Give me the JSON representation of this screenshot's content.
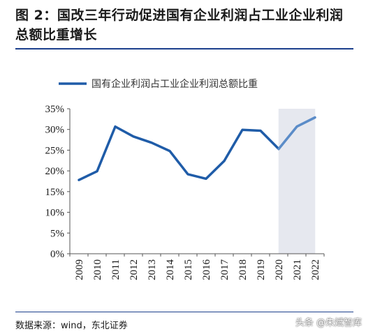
{
  "figure": {
    "title": "图 2：国改三年行动促进国有企业利润占工业企业利润总额比重增长",
    "source": "数据来源：wind，东北证券",
    "watermark": "头条 @朱斌智库"
  },
  "chart_data": {
    "type": "line",
    "x": [
      "2009",
      "2010",
      "2011",
      "2012",
      "2013",
      "2014",
      "2015",
      "2016",
      "2017",
      "2018",
      "2019",
      "2020",
      "2021",
      "2022"
    ],
    "series": [
      {
        "name": "国有企业利润占工业企业利润总额比重",
        "values": [
          17.8,
          19.9,
          30.7,
          28.3,
          26.8,
          24.8,
          19.2,
          18.1,
          22.4,
          29.9,
          29.7,
          25.3,
          30.7,
          32.9
        ],
        "color": "#1f5ca8",
        "highlight_color": "#5b8cc8"
      }
    ],
    "y_ticks": [
      "0%",
      "5%",
      "10%",
      "15%",
      "20%",
      "25%",
      "30%",
      "35%"
    ],
    "ylim": [
      0,
      35
    ],
    "grid": false,
    "legend_position": "top-left",
    "shaded_period": {
      "from": "2020",
      "to": "2022",
      "color": "#e6e8ef"
    },
    "xlabel": "",
    "ylabel": ""
  }
}
